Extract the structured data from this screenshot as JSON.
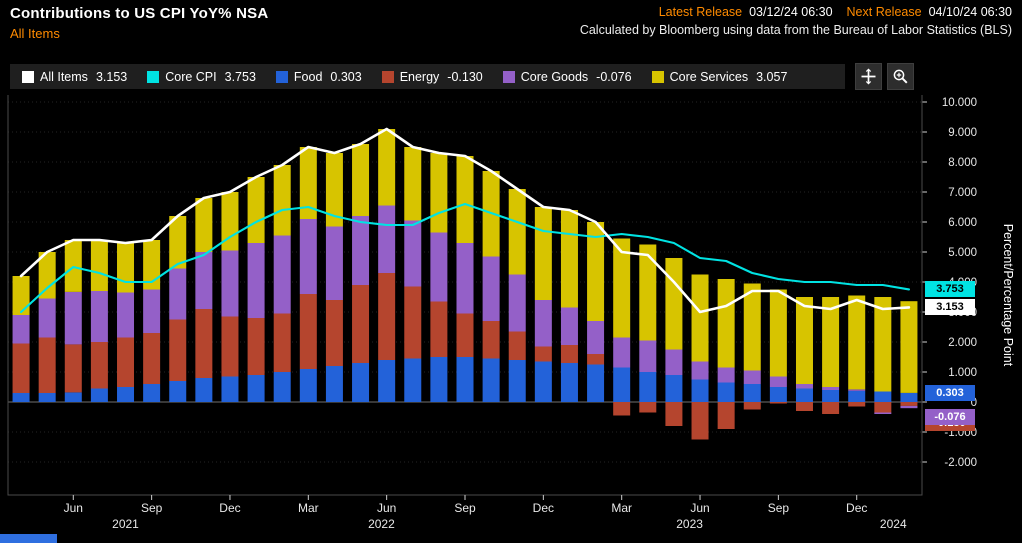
{
  "header": {
    "title": "Contributions to US CPI YoY% NSA",
    "subtitle": "All Items",
    "latest_release_label": "Latest Release",
    "latest_release_value": "03/12/24 06:30",
    "next_release_label": "Next Release",
    "next_release_value": "04/10/24 06:30",
    "attribution": "Calculated by Bloomberg using data from the Bureau of Labor Statistics (BLS)"
  },
  "colors": {
    "accent_orange": "#ff8b00",
    "all_items": "#ffffff",
    "core_cpi": "#00e3e3",
    "food": "#2362d9",
    "energy": "#b5452e",
    "core_goods": "#9460c8",
    "core_services": "#d7c400"
  },
  "legend": {
    "items": [
      {
        "label": "All Items",
        "value": "3.153",
        "color": "#ffffff"
      },
      {
        "label": "Core CPI",
        "value": "3.753",
        "color": "#00e3e3"
      },
      {
        "label": "Food",
        "value": "0.303",
        "color": "#2362d9"
      },
      {
        "label": "Energy",
        "value": "-0.130",
        "color": "#b5452e"
      },
      {
        "label": "Core Goods",
        "value": "-0.076",
        "color": "#9460c8"
      },
      {
        "label": "Core Services",
        "value": "3.057",
        "color": "#d7c400"
      }
    ]
  },
  "axis": {
    "y_label": "Percent/Percentage Point",
    "y_ticks": [
      {
        "value": 10,
        "label": "10.000"
      },
      {
        "value": 9,
        "label": "9.000"
      },
      {
        "value": 8,
        "label": "8.000"
      },
      {
        "value": 7,
        "label": "7.000"
      },
      {
        "value": 6,
        "label": "6.000"
      },
      {
        "value": 5,
        "label": "5.000"
      },
      {
        "value": 4,
        "label": "4.000"
      },
      {
        "value": 3,
        "label": "3.000"
      },
      {
        "value": 2,
        "label": "2.000"
      },
      {
        "value": 1,
        "label": "1.000"
      },
      {
        "value": 0,
        "label": "0"
      },
      {
        "value": -1,
        "label": "-1.000"
      },
      {
        "value": -2,
        "label": "-2.000"
      }
    ],
    "x_ticks": [
      {
        "index": 2,
        "label": "Jun"
      },
      {
        "index": 5,
        "label": "Sep"
      },
      {
        "index": 8,
        "label": "Dec"
      },
      {
        "index": 11,
        "label": "Mar"
      },
      {
        "index": 14,
        "label": "Jun"
      },
      {
        "index": 17,
        "label": "Sep"
      },
      {
        "index": 20,
        "label": "Dec"
      },
      {
        "index": 23,
        "label": "Mar"
      },
      {
        "index": 26,
        "label": "Jun"
      },
      {
        "index": 29,
        "label": "Sep"
      },
      {
        "index": 32,
        "label": "Dec"
      }
    ],
    "year_labels": [
      {
        "index": 4,
        "label": "2021"
      },
      {
        "index": 13.8,
        "label": "2022"
      },
      {
        "index": 25.6,
        "label": "2023"
      },
      {
        "index": 33.4,
        "label": "2024"
      }
    ]
  },
  "value_tags": [
    {
      "text": "3.753",
      "value": 3.753,
      "bg": "#00e3e3",
      "fg": "#000000"
    },
    {
      "text": "3.153",
      "value": 3.153,
      "bg": "#ffffff",
      "fg": "#000000"
    },
    {
      "text": "0.303",
      "value": 0.303,
      "bg": "#2362d9",
      "fg": "#ffffff"
    },
    {
      "text": "-0.130",
      "value": -0.13,
      "bg": "#b5452e",
      "fg": "#ffffff"
    },
    {
      "text": "-0.076",
      "value": -0.076,
      "bg": "#9460c8",
      "fg": "#ffffff"
    }
  ],
  "chart_data": {
    "type": "bar",
    "stacked": true,
    "title": "Contributions to US CPI YoY% NSA",
    "subtitle": "All Items",
    "ylabel": "Percent/Percentage Point",
    "ylim": [
      -3.1,
      10.2
    ],
    "grid": true,
    "legend_position": "top",
    "x": [
      "2021-04",
      "2021-05",
      "2021-06",
      "2021-07",
      "2021-08",
      "2021-09",
      "2021-10",
      "2021-11",
      "2021-12",
      "2022-01",
      "2022-02",
      "2022-03",
      "2022-04",
      "2022-05",
      "2022-06",
      "2022-07",
      "2022-08",
      "2022-09",
      "2022-10",
      "2022-11",
      "2022-12",
      "2023-01",
      "2023-02",
      "2023-03",
      "2023-04",
      "2023-05",
      "2023-06",
      "2023-07",
      "2023-08",
      "2023-09",
      "2023-10",
      "2023-11",
      "2023-12",
      "2024-01",
      "2024-02"
    ],
    "bar_series": [
      {
        "name": "Food",
        "color": "#2362d9",
        "values": [
          0.3,
          0.3,
          0.32,
          0.45,
          0.5,
          0.6,
          0.7,
          0.8,
          0.85,
          0.9,
          1.0,
          1.1,
          1.2,
          1.3,
          1.4,
          1.45,
          1.5,
          1.5,
          1.45,
          1.4,
          1.35,
          1.3,
          1.25,
          1.15,
          1.0,
          0.9,
          0.75,
          0.65,
          0.6,
          0.5,
          0.45,
          0.4,
          0.37,
          0.35,
          0.303
        ]
      },
      {
        "name": "Energy",
        "color": "#b5452e",
        "values": [
          1.65,
          1.85,
          1.6,
          1.55,
          1.65,
          1.7,
          2.05,
          2.3,
          2.0,
          1.9,
          1.95,
          2.5,
          2.2,
          2.6,
          2.9,
          2.4,
          1.85,
          1.45,
          1.25,
          0.95,
          0.5,
          0.6,
          0.35,
          -0.45,
          -0.35,
          -0.8,
          -1.25,
          -0.9,
          -0.25,
          -0.05,
          -0.3,
          -0.4,
          -0.15,
          -0.35,
          -0.13
        ]
      },
      {
        "name": "Core Goods",
        "color": "#9460c8",
        "values": [
          0.95,
          1.3,
          1.75,
          1.7,
          1.5,
          1.45,
          1.7,
          1.9,
          2.2,
          2.5,
          2.6,
          2.5,
          2.45,
          2.3,
          2.25,
          2.2,
          2.3,
          2.35,
          2.15,
          1.9,
          1.55,
          1.25,
          1.1,
          1.0,
          1.05,
          0.85,
          0.6,
          0.5,
          0.45,
          0.35,
          0.15,
          0.1,
          0.05,
          -0.05,
          -0.076
        ]
      },
      {
        "name": "Core Services",
        "color": "#d7c400",
        "values": [
          1.3,
          1.55,
          1.73,
          1.7,
          1.65,
          1.65,
          1.75,
          1.8,
          1.95,
          2.2,
          2.35,
          2.4,
          2.45,
          2.4,
          2.55,
          2.45,
          2.65,
          2.9,
          2.85,
          2.85,
          3.1,
          3.25,
          3.3,
          3.3,
          3.2,
          3.05,
          2.9,
          2.95,
          2.9,
          2.9,
          2.9,
          3.0,
          3.13,
          3.15,
          3.057
        ]
      }
    ],
    "line_series": [
      {
        "name": "All Items",
        "color": "#ffffff",
        "values": [
          4.2,
          5.0,
          5.4,
          5.4,
          5.3,
          5.4,
          6.2,
          6.8,
          7.0,
          7.5,
          7.9,
          8.5,
          8.3,
          8.6,
          9.1,
          8.5,
          8.3,
          8.2,
          7.7,
          7.1,
          6.5,
          6.4,
          6.0,
          5.0,
          4.9,
          4.0,
          3.0,
          3.2,
          3.7,
          3.7,
          3.2,
          3.1,
          3.4,
          3.1,
          3.153
        ]
      },
      {
        "name": "Core CPI",
        "color": "#00e3e3",
        "values": [
          3.0,
          3.8,
          4.5,
          4.3,
          4.0,
          4.0,
          4.6,
          4.9,
          5.5,
          6.0,
          6.4,
          6.5,
          6.2,
          6.0,
          5.9,
          5.9,
          6.3,
          6.6,
          6.3,
          6.0,
          5.7,
          5.6,
          5.5,
          5.6,
          5.5,
          5.3,
          4.8,
          4.7,
          4.3,
          4.1,
          4.0,
          4.0,
          3.9,
          3.9,
          3.753
        ]
      }
    ]
  }
}
